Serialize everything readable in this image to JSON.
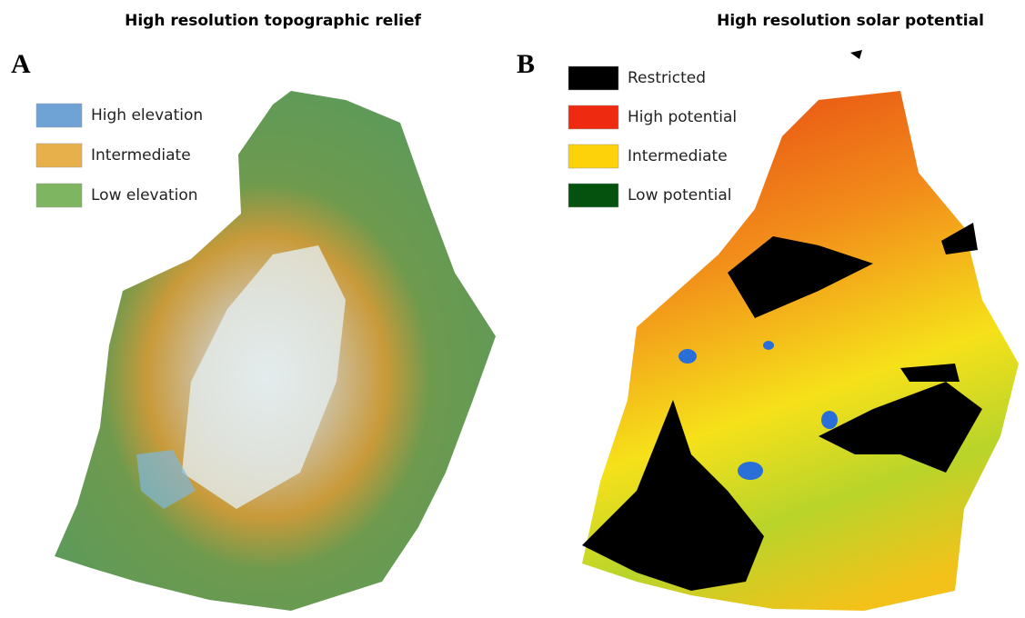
{
  "panels": [
    {
      "title": "High resolution topographic relief",
      "letter": "A",
      "legend": [
        {
          "label": "High elevation",
          "color": "#6fa3d6"
        },
        {
          "label": "Intermediate",
          "color": "#e8b04a"
        },
        {
          "label": "Low elevation",
          "color": "#7db561"
        }
      ]
    },
    {
      "title": "High resolution solar potential",
      "letter": "B",
      "legend": [
        {
          "label": "Restricted",
          "color": "#000000"
        },
        {
          "label": "High potential",
          "color": "#ee2a10"
        },
        {
          "label": "Intermediate",
          "color": "#fdd20a"
        },
        {
          "label": "Low potential",
          "color": "#05520f"
        }
      ]
    }
  ]
}
